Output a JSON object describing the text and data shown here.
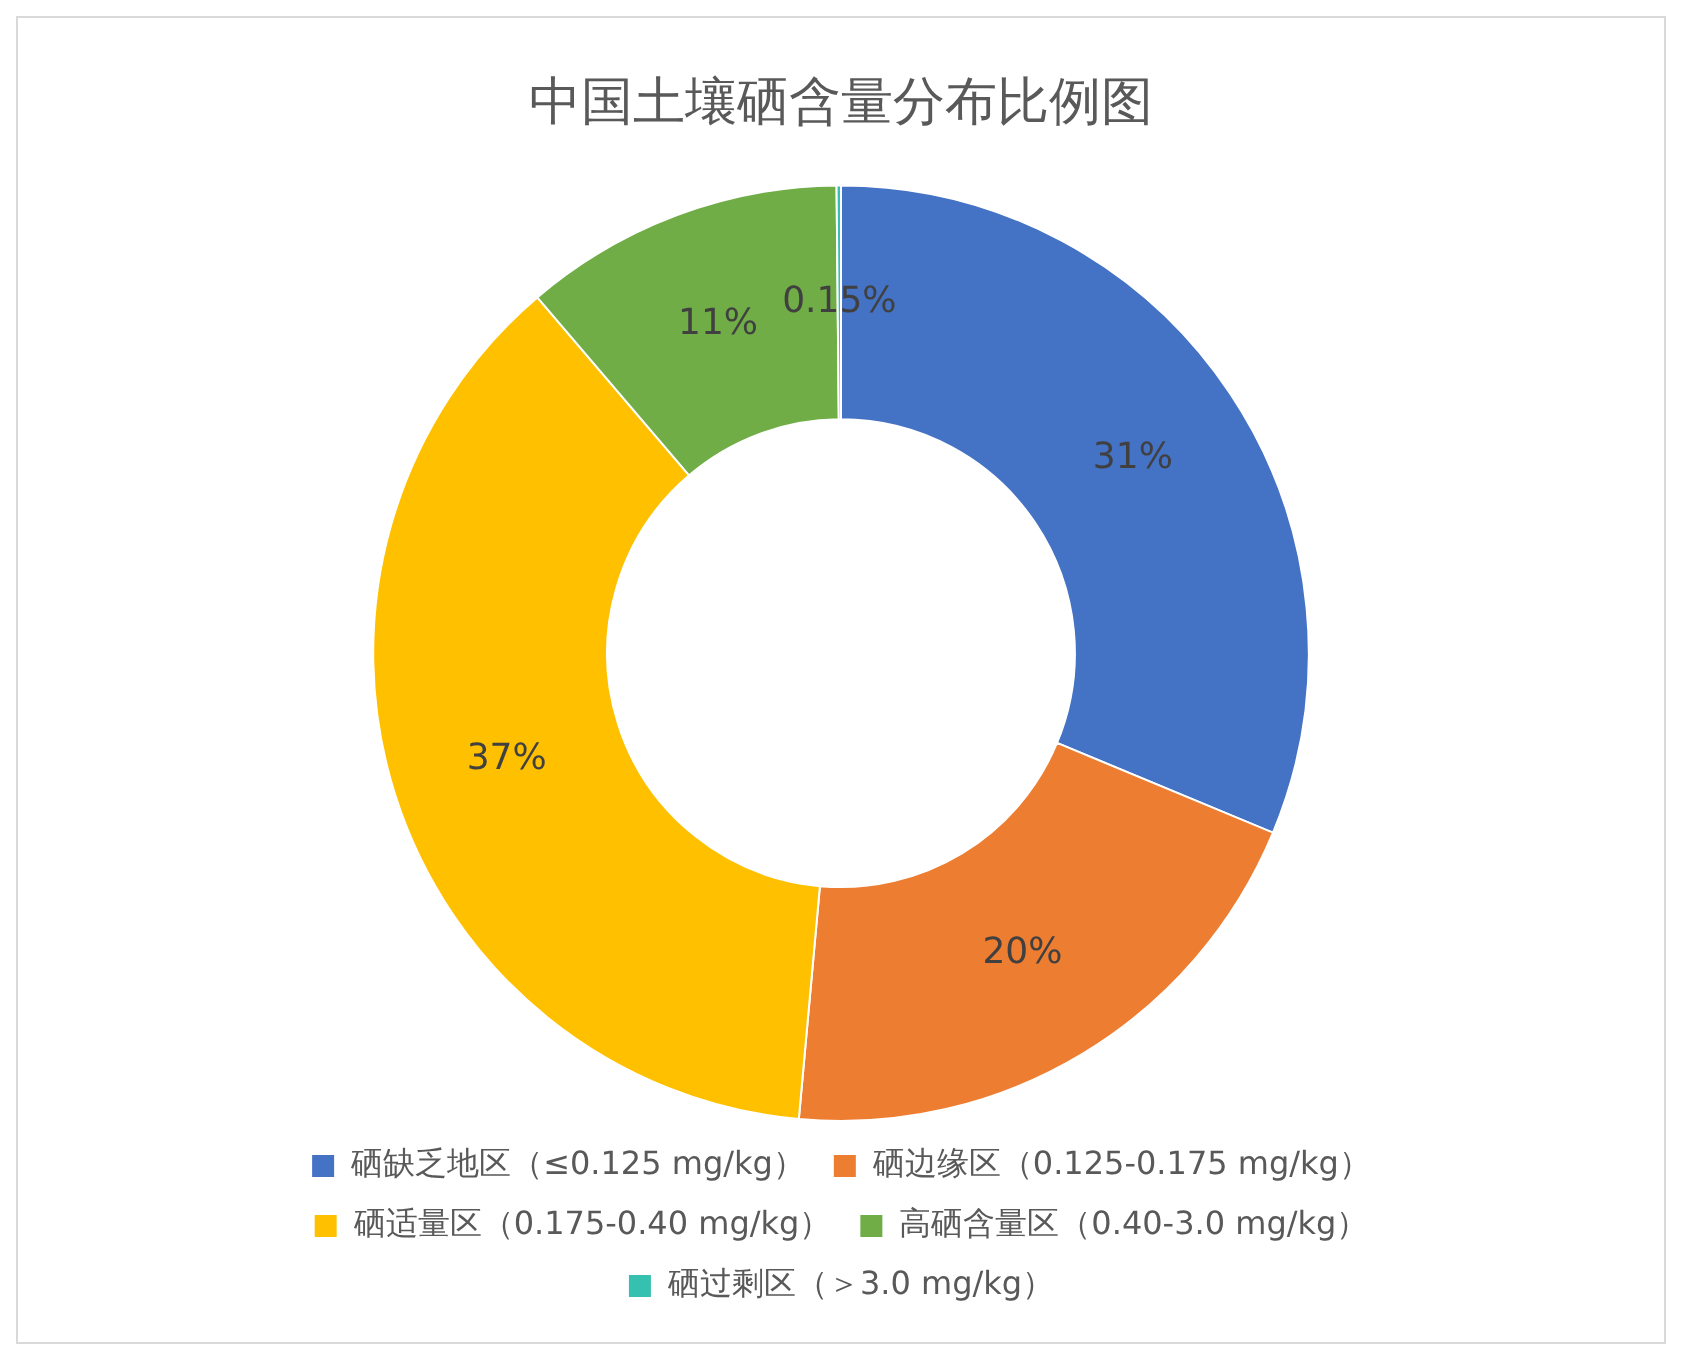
{
  "chart_data": {
    "type": "donut",
    "title": "中国土壤硒含量分布比例图",
    "categories": [
      "硒缺乏地区（≤0.125 mg/kg）",
      "硒边缘区（0.125-0.175 mg/kg）",
      "硒适量区（0.175-0.40 mg/kg）",
      "高硒含量区（0.40-3.0 mg/kg）",
      "硒过剩区（＞3.0 mg/kg）"
    ],
    "values": [
      31,
      20,
      37,
      11,
      0.15
    ],
    "value_labels": [
      "31%",
      "20%",
      "37%",
      "11%",
      "0.15%"
    ],
    "colors": [
      "#4472c4",
      "#ed7d31",
      "#ffc000",
      "#70ad47",
      "#36c0b0"
    ],
    "legend": "bottom"
  }
}
